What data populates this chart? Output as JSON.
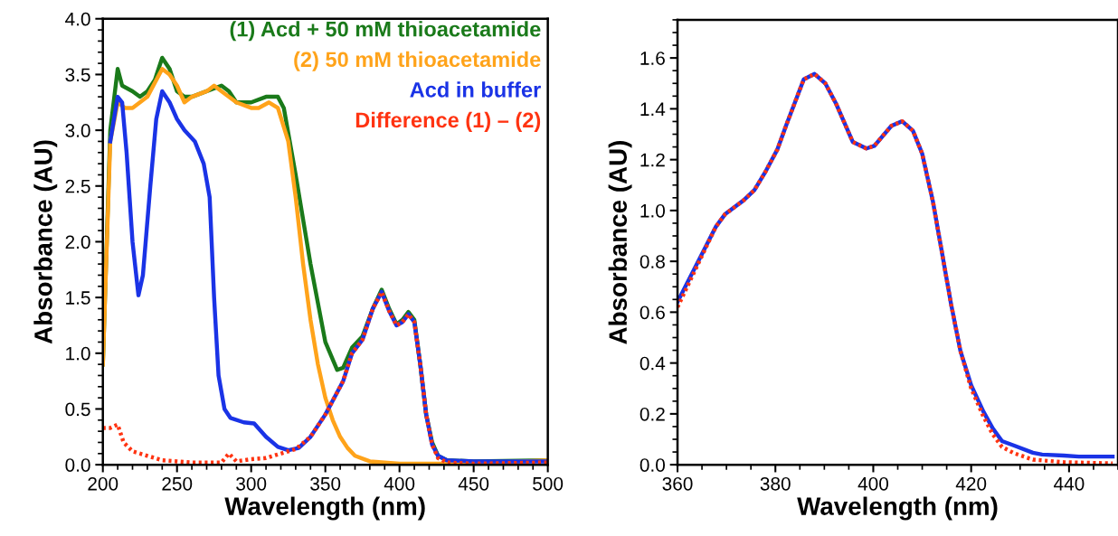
{
  "chart_data": [
    {
      "type": "line",
      "xlabel": "Wavelength (nm)",
      "ylabel": "Absorbance (AU)",
      "xlim": [
        200,
        500
      ],
      "xticks": [
        200,
        250,
        300,
        350,
        400,
        450,
        500
      ],
      "ylim": [
        0,
        4.0
      ],
      "yticks": [
        {
          "value": 0,
          "label": "0.0"
        },
        {
          "value": 0.5,
          "label": "0.5"
        },
        {
          "value": 1,
          "label": "1.0"
        },
        {
          "value": 1.5,
          "label": "1.5"
        },
        {
          "value": 2,
          "label": "2.0"
        },
        {
          "value": 2.5,
          "label": "2.5"
        },
        {
          "value": 3,
          "label": "3.0"
        },
        {
          "value": 3.5,
          "label": "3.5"
        },
        {
          "value": 4,
          "label": "4.0"
        }
      ],
      "legend": "top right",
      "grid": false,
      "series": [
        {
          "name": "(1) Acd + 50 mM thioacetamide",
          "color": "#1a7a1a",
          "line_style": "solid",
          "x": [
            200,
            205,
            210,
            213,
            220,
            225,
            230,
            235,
            240,
            245,
            250,
            255,
            260,
            270,
            280,
            285,
            290,
            300,
            310,
            318,
            322,
            330,
            340,
            350,
            358,
            362,
            368,
            375,
            382,
            388,
            393,
            398,
            402,
            406,
            410,
            414,
            418,
            422,
            426,
            432,
            450,
            500
          ],
          "values": [
            0.9,
            3.0,
            3.55,
            3.4,
            3.35,
            3.3,
            3.35,
            3.45,
            3.65,
            3.55,
            3.35,
            3.3,
            3.3,
            3.35,
            3.4,
            3.35,
            3.25,
            3.25,
            3.3,
            3.3,
            3.2,
            2.6,
            1.8,
            1.1,
            0.85,
            0.87,
            1.05,
            1.15,
            1.4,
            1.57,
            1.4,
            1.26,
            1.3,
            1.37,
            1.3,
            0.9,
            0.45,
            0.2,
            0.08,
            0.04,
            0.03,
            0.04
          ]
        },
        {
          "name": "(2) 50 mM thioacetamide",
          "color": "#ffa31a",
          "line_style": "solid",
          "x": [
            200,
            205,
            210,
            215,
            220,
            230,
            240,
            245,
            250,
            255,
            260,
            270,
            275,
            280,
            290,
            300,
            305,
            312,
            318,
            325,
            330,
            335,
            340,
            345,
            350,
            355,
            360,
            365,
            370,
            380,
            400,
            450,
            500
          ],
          "values": [
            0.9,
            2.9,
            3.25,
            3.2,
            3.2,
            3.3,
            3.55,
            3.5,
            3.4,
            3.25,
            3.3,
            3.35,
            3.4,
            3.35,
            3.25,
            3.2,
            3.2,
            3.25,
            3.2,
            2.9,
            2.4,
            1.8,
            1.3,
            0.9,
            0.6,
            0.4,
            0.25,
            0.15,
            0.08,
            0.03,
            0.01,
            0.01,
            0.04
          ]
        },
        {
          "name": "Acd in buffer",
          "color": "#1a33e6",
          "line_style": "solid",
          "x": [
            205,
            210,
            213,
            216,
            220,
            224,
            227,
            232,
            236,
            240,
            245,
            250,
            255,
            262,
            268,
            272,
            275,
            278,
            282,
            286,
            295,
            302,
            310,
            318,
            325,
            332,
            340,
            350,
            358,
            362,
            368,
            375,
            382,
            388,
            393,
            398,
            402,
            406,
            410,
            414,
            418,
            422,
            426,
            432,
            450,
            500
          ],
          "values": [
            2.9,
            3.3,
            3.25,
            2.8,
            2.0,
            1.52,
            1.7,
            2.5,
            3.1,
            3.35,
            3.25,
            3.1,
            3.0,
            2.9,
            2.7,
            2.4,
            1.5,
            0.8,
            0.5,
            0.42,
            0.38,
            0.37,
            0.25,
            0.16,
            0.13,
            0.15,
            0.25,
            0.45,
            0.65,
            0.75,
            1.0,
            1.12,
            1.4,
            1.55,
            1.38,
            1.25,
            1.28,
            1.35,
            1.28,
            0.9,
            0.45,
            0.18,
            0.08,
            0.04,
            0.03,
            0.03
          ]
        },
        {
          "name": "Difference (1) – (2)",
          "color": "#ff3311",
          "line_style": "dotted",
          "x": [
            200,
            205,
            210,
            214,
            220,
            230,
            240,
            250,
            260,
            280,
            285,
            290,
            300,
            310,
            320,
            330,
            340,
            350,
            358,
            362,
            368,
            375,
            382,
            388,
            393,
            398,
            402,
            406,
            410,
            414,
            418,
            422,
            426,
            432,
            450,
            500
          ],
          "values": [
            0.33,
            0.33,
            0.36,
            0.2,
            0.12,
            0.08,
            0.04,
            0.03,
            0.02,
            0.02,
            0.1,
            0.03,
            0.05,
            0.06,
            0.1,
            0.14,
            0.25,
            0.45,
            0.65,
            0.75,
            1.0,
            1.12,
            1.4,
            1.55,
            1.38,
            1.25,
            1.28,
            1.35,
            1.28,
            0.9,
            0.45,
            0.18,
            0.06,
            0.02,
            0.01,
            0.02
          ]
        }
      ]
    },
    {
      "type": "line",
      "xlabel": "Wavelength (nm)",
      "ylabel": "Absorbance (AU)",
      "xlim": [
        360,
        450
      ],
      "xticks": [
        360,
        380,
        400,
        420,
        440
      ],
      "ylim": [
        0,
        1.75
      ],
      "yticks": [
        {
          "value": 0,
          "label": "0.0"
        },
        {
          "value": 0.2,
          "label": "0.2"
        },
        {
          "value": 0.4,
          "label": "0.4"
        },
        {
          "value": 0.6,
          "label": "0.6"
        },
        {
          "value": 0.8,
          "label": "0.8"
        },
        {
          "value": 1.0,
          "label": "1.0"
        },
        {
          "value": 1.2,
          "label": "1.2"
        },
        {
          "value": 1.4,
          "label": "1.4"
        },
        {
          "value": 1.6,
          "label": "1.6"
        }
      ],
      "grid": false,
      "series": [
        {
          "color": "#1a33e6",
          "line_style": "solid",
          "x": [
            360.0,
            367.8,
            369.7,
            373.5,
            375.7,
            377.9,
            380.4,
            382.3,
            385.8,
            388.0,
            390.2,
            392.4,
            395.8,
            398.6,
            400.2,
            403.7,
            405.9,
            408.1,
            410.0,
            412.2,
            414.0,
            415.9,
            417.8,
            420.0,
            422.5,
            424.4,
            426.3,
            428.8,
            432.6,
            434.5,
            438.9,
            442.0,
            448.9
          ],
          "values": [
            0.64,
            0.935,
            0.985,
            1.04,
            1.08,
            1.15,
            1.24,
            1.34,
            1.516,
            1.537,
            1.5,
            1.42,
            1.27,
            1.244,
            1.254,
            1.333,
            1.351,
            1.314,
            1.223,
            1.034,
            0.838,
            0.631,
            0.448,
            0.313,
            0.209,
            0.143,
            0.093,
            0.075,
            0.047,
            0.04,
            0.036,
            0.032,
            0.032
          ]
        },
        {
          "color": "#ff3311",
          "line_style": "dotted",
          "x": [
            360.0,
            367.8,
            369.7,
            373.5,
            375.7,
            377.9,
            380.4,
            382.3,
            385.8,
            388.0,
            390.2,
            392.4,
            395.8,
            398.6,
            400.2,
            403.7,
            405.9,
            408.1,
            410.0,
            412.2,
            414.0,
            415.9,
            417.8,
            420.0,
            422.5,
            424.4,
            426.3,
            428.8,
            432.6,
            438.9,
            448.9
          ],
          "values": [
            0.62,
            0.935,
            0.985,
            1.04,
            1.08,
            1.15,
            1.24,
            1.34,
            1.516,
            1.537,
            1.5,
            1.42,
            1.27,
            1.244,
            1.254,
            1.333,
            1.351,
            1.314,
            1.223,
            1.034,
            0.838,
            0.631,
            0.448,
            0.3,
            0.19,
            0.12,
            0.07,
            0.045,
            0.02,
            0.01,
            0.005
          ]
        }
      ]
    }
  ]
}
